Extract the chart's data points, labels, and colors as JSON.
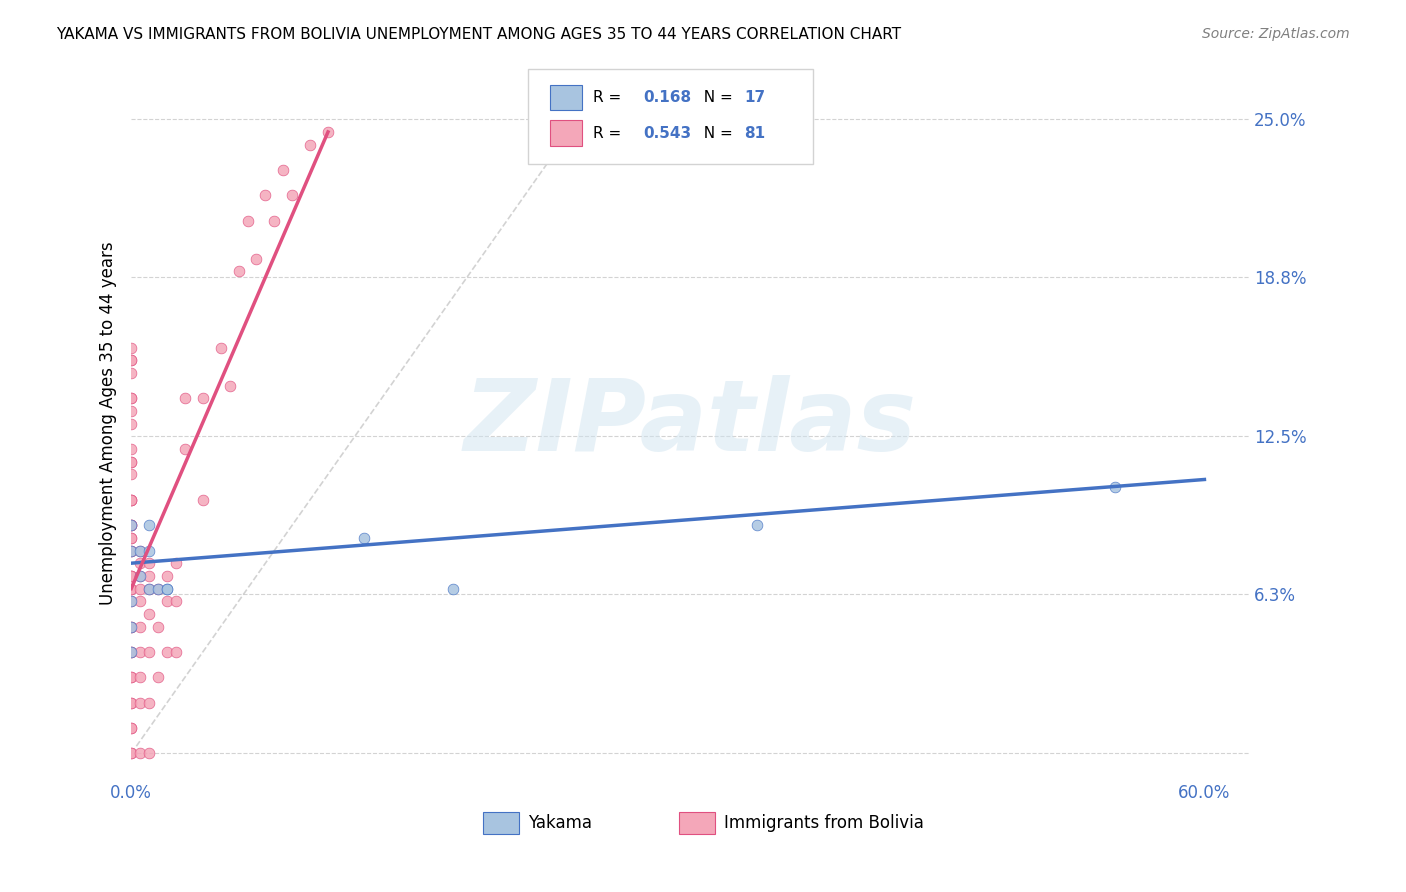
{
  "title": "YAKAMA VS IMMIGRANTS FROM BOLIVIA UNEMPLOYMENT AMONG AGES 35 TO 44 YEARS CORRELATION CHART",
  "source": "Source: ZipAtlas.com",
  "ylabel_ticks": [
    0.0,
    0.063,
    0.125,
    0.188,
    0.25
  ],
  "ylabel_labels": [
    "",
    "6.3%",
    "12.5%",
    "18.8%",
    "25.0%"
  ],
  "xlim": [
    0.0,
    0.625
  ],
  "ylim": [
    -0.01,
    0.27
  ],
  "ylabel": "Unemployment Among Ages 35 to 44 years",
  "legend_labels": [
    "Yakama",
    "Immigrants from Bolivia"
  ],
  "legend_R": [
    "0.168",
    "0.543"
  ],
  "legend_N": [
    "17",
    "81"
  ],
  "color_yakama": "#a8c4e0",
  "color_bolivia": "#f4a7b9",
  "color_yakama_line": "#4472c4",
  "color_bolivia_line": "#e05080",
  "color_diagonal": "#c0c0c0",
  "color_blue_text": "#4472c4",
  "watermark_text": "ZIPatlas",
  "watermark_color": "#d0e4f0",
  "yakama_x": [
    0.0,
    0.0,
    0.0,
    0.0,
    0.0,
    0.005,
    0.005,
    0.01,
    0.01,
    0.01,
    0.015,
    0.02,
    0.02,
    0.13,
    0.18,
    0.35,
    0.55
  ],
  "yakama_y": [
    0.09,
    0.08,
    0.06,
    0.05,
    0.04,
    0.08,
    0.07,
    0.09,
    0.08,
    0.065,
    0.065,
    0.065,
    0.065,
    0.085,
    0.065,
    0.09,
    0.105
  ],
  "bolivia_x": [
    0.0,
    0.0,
    0.0,
    0.0,
    0.0,
    0.0,
    0.0,
    0.0,
    0.0,
    0.0,
    0.0,
    0.0,
    0.0,
    0.0,
    0.0,
    0.0,
    0.0,
    0.0,
    0.0,
    0.0,
    0.0,
    0.0,
    0.0,
    0.0,
    0.0,
    0.0,
    0.0,
    0.0,
    0.0,
    0.0,
    0.0,
    0.0,
    0.0,
    0.0,
    0.0,
    0.0,
    0.0,
    0.0,
    0.0,
    0.0,
    0.005,
    0.005,
    0.005,
    0.005,
    0.005,
    0.005,
    0.005,
    0.005,
    0.005,
    0.005,
    0.01,
    0.01,
    0.01,
    0.01,
    0.01,
    0.01,
    0.01,
    0.015,
    0.015,
    0.015,
    0.02,
    0.02,
    0.02,
    0.025,
    0.025,
    0.025,
    0.03,
    0.03,
    0.04,
    0.04,
    0.05,
    0.055,
    0.06,
    0.065,
    0.07,
    0.075,
    0.08,
    0.085,
    0.09,
    0.1,
    0.11
  ],
  "bolivia_y": [
    0.0,
    0.0,
    0.01,
    0.01,
    0.02,
    0.02,
    0.03,
    0.03,
    0.04,
    0.04,
    0.05,
    0.05,
    0.06,
    0.065,
    0.065,
    0.07,
    0.07,
    0.07,
    0.08,
    0.08,
    0.085,
    0.085,
    0.09,
    0.09,
    0.09,
    0.1,
    0.1,
    0.1,
    0.11,
    0.115,
    0.115,
    0.12,
    0.13,
    0.135,
    0.14,
    0.14,
    0.15,
    0.155,
    0.155,
    0.16,
    0.0,
    0.02,
    0.03,
    0.04,
    0.05,
    0.06,
    0.065,
    0.07,
    0.075,
    0.08,
    0.0,
    0.02,
    0.04,
    0.055,
    0.065,
    0.07,
    0.075,
    0.03,
    0.05,
    0.065,
    0.04,
    0.06,
    0.07,
    0.04,
    0.06,
    0.075,
    0.12,
    0.14,
    0.1,
    0.14,
    0.16,
    0.145,
    0.19,
    0.21,
    0.195,
    0.22,
    0.21,
    0.23,
    0.22,
    0.24,
    0.245
  ],
  "yakama_regline_x": [
    0.0,
    0.6
  ],
  "yakama_regline_y": [
    0.075,
    0.108
  ],
  "bolivia_regline_x": [
    0.0,
    0.11
  ],
  "bolivia_regline_y": [
    0.065,
    0.245
  ],
  "diag_line_x": [
    0.0,
    0.27
  ],
  "diag_line_y": [
    0.0,
    0.27
  ]
}
